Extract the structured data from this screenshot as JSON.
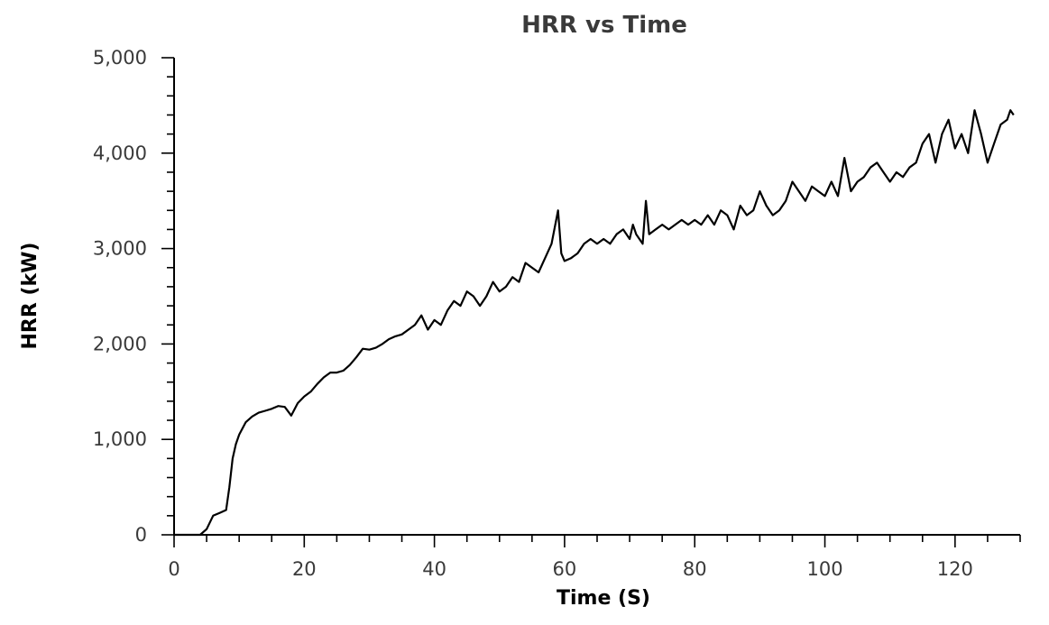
{
  "chart_data": {
    "type": "line",
    "title": "HRR vs Time",
    "xlabel": "Time (S)",
    "ylabel": "HRR (kW)",
    "xlim": [
      0,
      130
    ],
    "ylim": [
      0,
      5000
    ],
    "xticks": [
      0,
      20,
      40,
      60,
      80,
      100,
      120
    ],
    "xtick_labels": [
      "0",
      "20",
      "40",
      "60",
      "80",
      "100",
      "120"
    ],
    "yticks": [
      0,
      1000,
      2000,
      3000,
      4000,
      5000
    ],
    "ytick_labels": [
      "0",
      "1,000",
      "2,000",
      "3,000",
      "4,000",
      "5,000"
    ],
    "grid": false,
    "legend": "none",
    "colors": {
      "line": "#000000",
      "title": "#3a3a3a"
    },
    "series": [
      {
        "x": [
          0,
          4,
          5,
          6,
          7,
          8,
          8.5,
          9,
          9.5,
          10,
          11,
          12,
          13,
          14,
          15,
          16,
          17,
          18,
          19,
          20,
          21,
          22,
          23,
          24,
          25,
          26,
          27,
          28,
          29,
          30,
          31,
          32,
          33,
          34,
          35,
          36,
          37,
          38,
          39,
          40,
          41,
          42,
          43,
          44,
          45,
          46,
          47,
          48,
          49,
          50,
          51,
          52,
          53,
          54,
          55,
          56,
          57,
          58,
          59,
          59.5,
          60,
          61,
          62,
          63,
          64,
          65,
          66,
          67,
          68,
          69,
          70,
          70.5,
          71,
          72,
          72.5,
          73,
          74,
          75,
          76,
          77,
          78,
          79,
          80,
          81,
          82,
          83,
          84,
          85,
          86,
          87,
          88,
          89,
          90,
          91,
          92,
          93,
          94,
          95,
          96,
          97,
          98,
          99,
          100,
          101,
          102,
          103,
          104,
          105,
          106,
          107,
          108,
          109,
          110,
          111,
          112,
          113,
          114,
          115,
          116,
          117,
          118,
          119,
          120,
          121,
          122,
          123,
          124,
          125,
          126,
          127,
          128,
          128.5,
          129
        ],
        "y": [
          0,
          0,
          60,
          200,
          230,
          260,
          500,
          800,
          950,
          1050,
          1180,
          1240,
          1280,
          1300,
          1320,
          1350,
          1340,
          1250,
          1380,
          1450,
          1500,
          1580,
          1650,
          1700,
          1700,
          1720,
          1780,
          1860,
          1950,
          1940,
          1960,
          2000,
          2050,
          2080,
          2100,
          2150,
          2200,
          2300,
          2150,
          2250,
          2200,
          2350,
          2450,
          2400,
          2550,
          2500,
          2400,
          2500,
          2650,
          2550,
          2600,
          2700,
          2650,
          2850,
          2800,
          2750,
          2900,
          3050,
          3400,
          2950,
          2870,
          2900,
          2950,
          3050,
          3100,
          3050,
          3100,
          3050,
          3150,
          3200,
          3100,
          3250,
          3150,
          3050,
          3500,
          3150,
          3200,
          3250,
          3200,
          3250,
          3300,
          3250,
          3300,
          3250,
          3350,
          3250,
          3400,
          3350,
          3200,
          3450,
          3350,
          3400,
          3600,
          3450,
          3350,
          3400,
          3500,
          3700,
          3600,
          3500,
          3650,
          3600,
          3550,
          3700,
          3550,
          3950,
          3600,
          3700,
          3750,
          3850,
          3900,
          3800,
          3700,
          3800,
          3750,
          3850,
          3900,
          4100,
          4200,
          3900,
          4200,
          4350,
          4050,
          4200,
          4000,
          4450,
          4200,
          3900,
          4100,
          4300,
          4350,
          4450,
          4400
        ]
      }
    ]
  }
}
